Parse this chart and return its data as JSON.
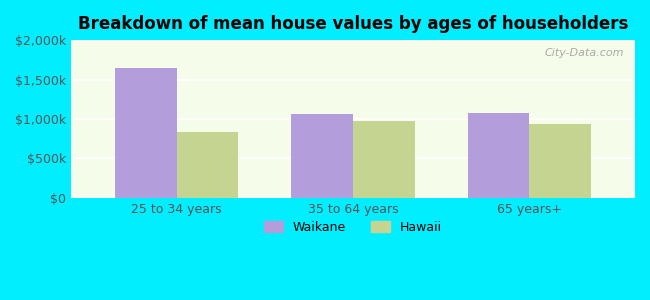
{
  "title": "Breakdown of mean house values by ages of householders",
  "categories": [
    "25 to 34 years",
    "35 to 64 years",
    "65 years+"
  ],
  "waikane_values": [
    1650000,
    1060000,
    1080000
  ],
  "hawaii_values": [
    830000,
    975000,
    940000
  ],
  "waikane_color": "#b39ddb",
  "hawaii_color": "#c5d591",
  "ylim": [
    0,
    2000000
  ],
  "yticks": [
    0,
    500000,
    1000000,
    1500000,
    2000000
  ],
  "ytick_labels": [
    "$0",
    "$500k",
    "$1,000k",
    "$1,500k",
    "$2,000k"
  ],
  "background_color": "#00eeff",
  "plot_bg_color": "#f5fcea",
  "bar_width": 0.35,
  "legend_labels": [
    "Waikane",
    "Hawaii"
  ],
  "watermark": "City-Data.com"
}
